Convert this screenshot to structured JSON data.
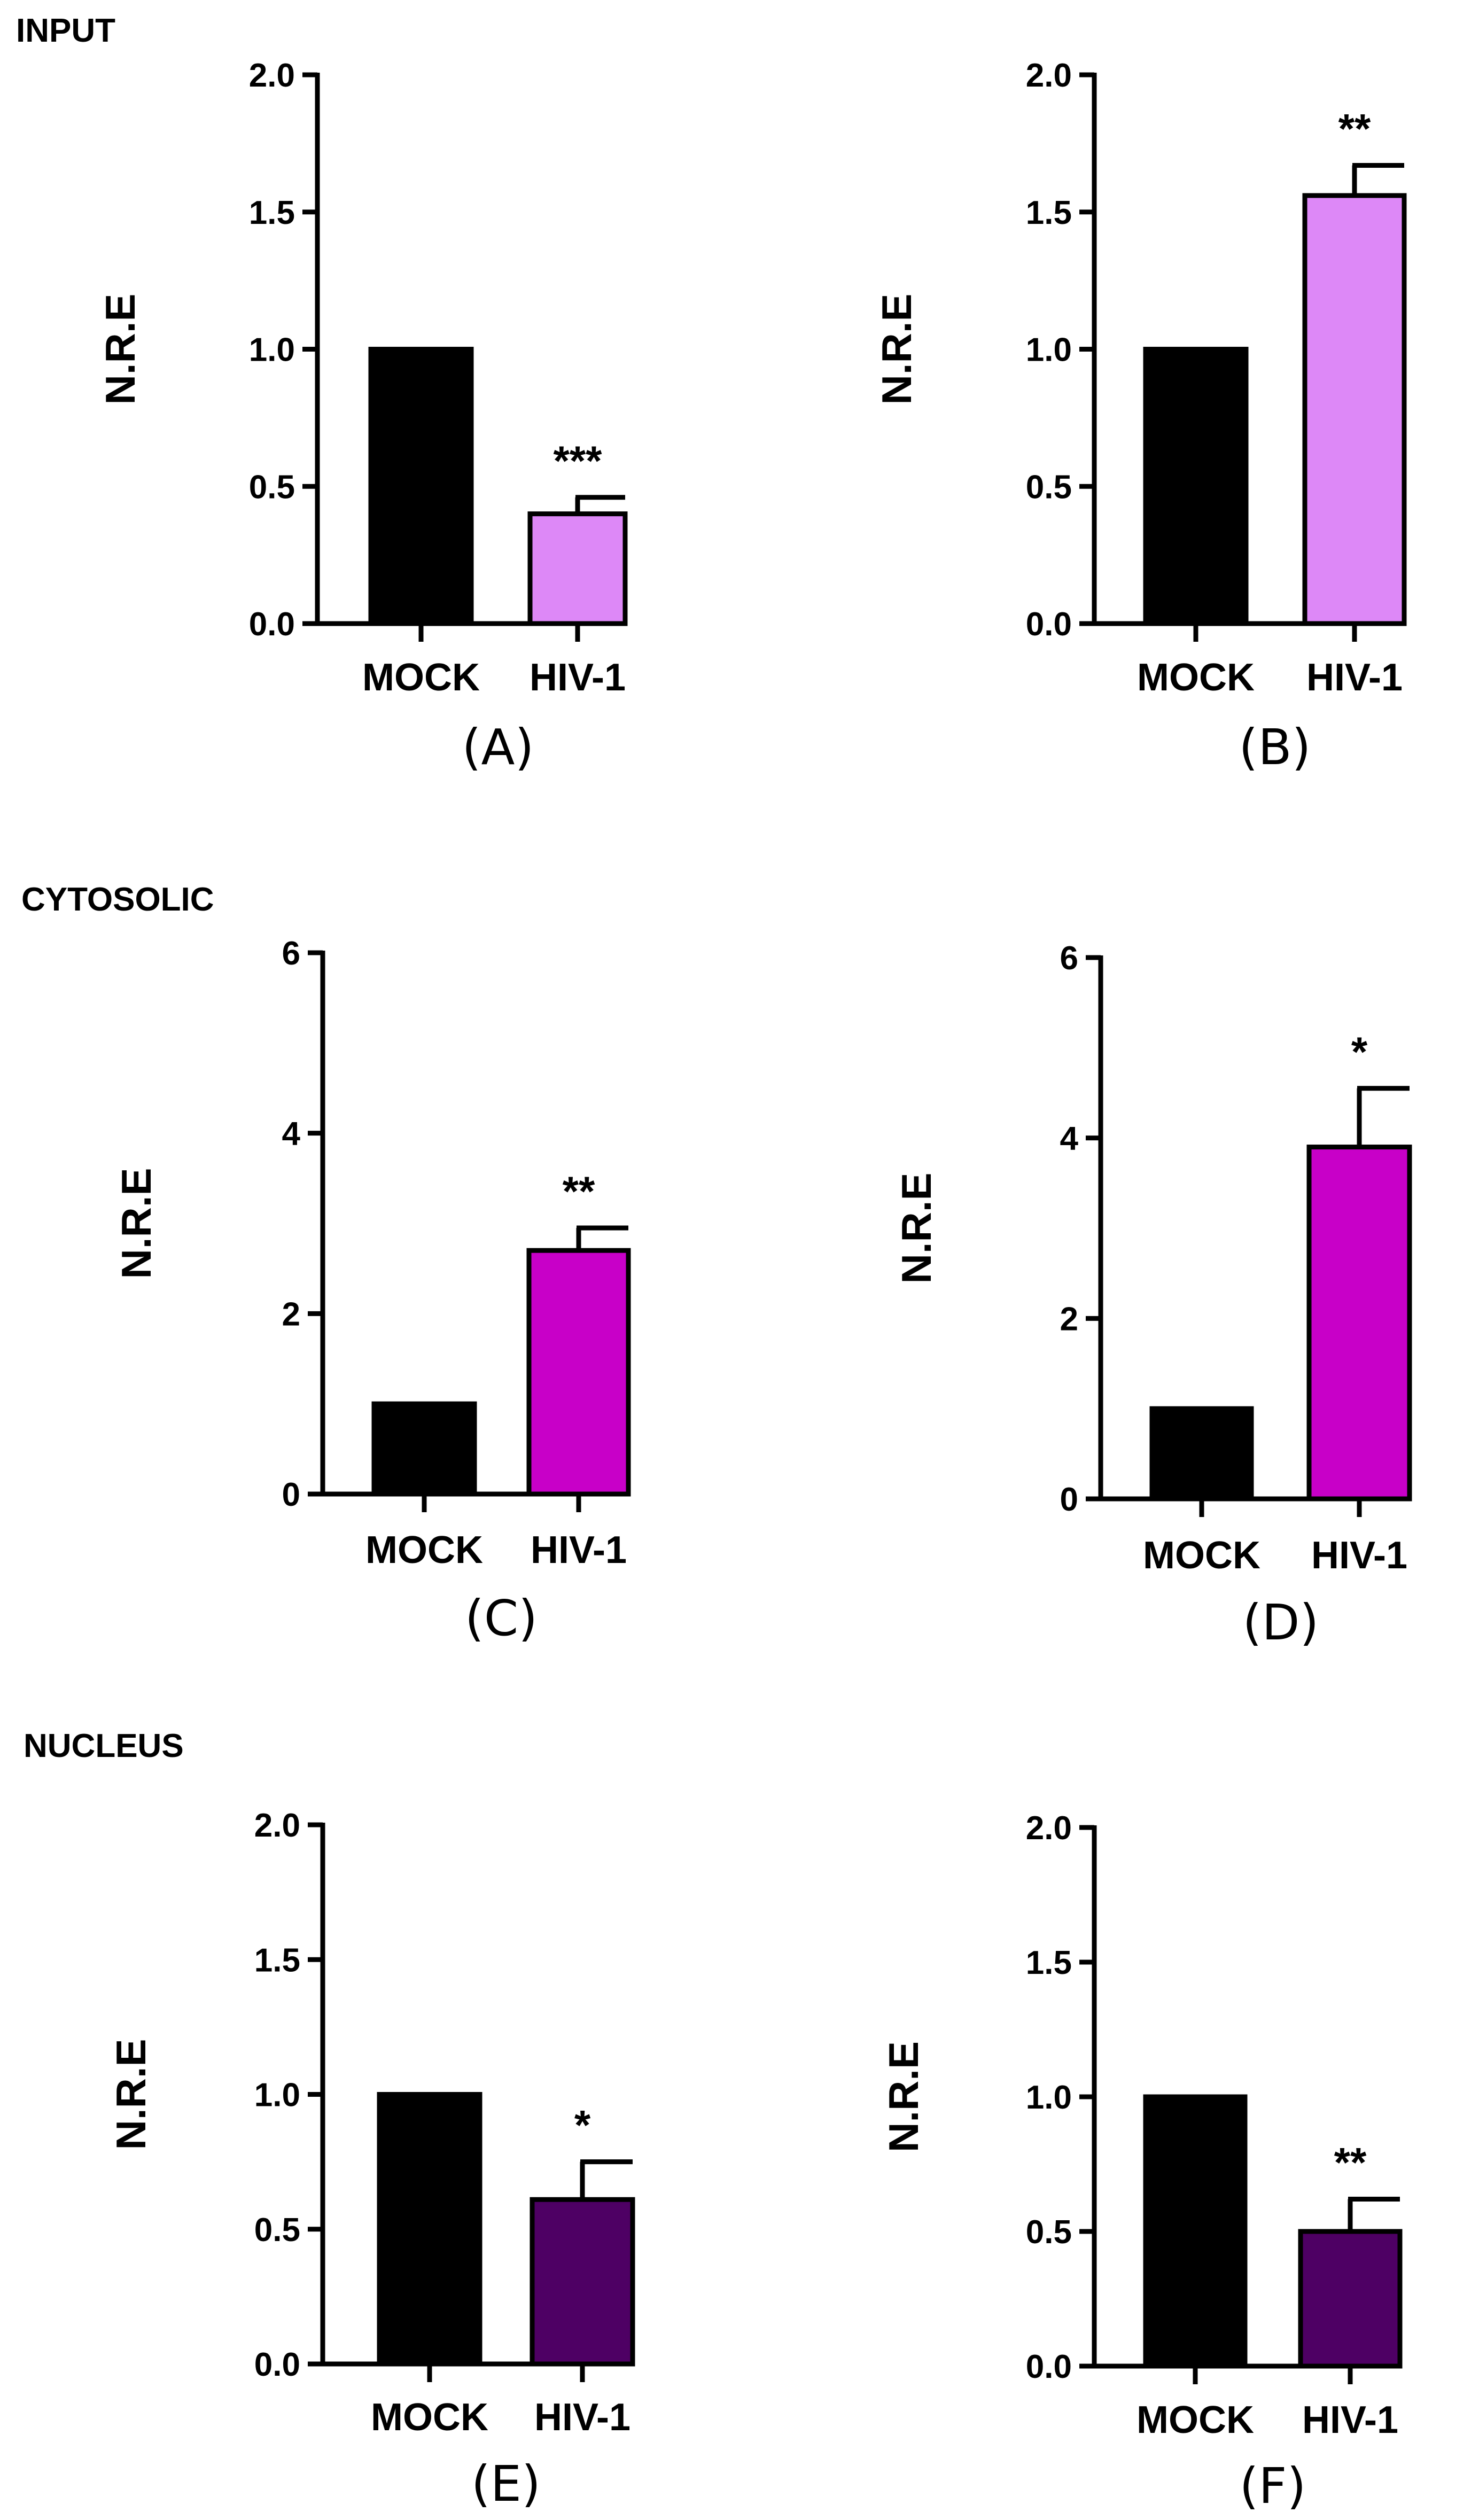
{
  "sections": {
    "input": "INPUT",
    "cytosolic": "CYTOSOLIC",
    "nucleus": "NUCLEUS"
  },
  "chart_data": [
    {
      "type": "bar",
      "panel": "(A)",
      "section": "INPUT",
      "categories": [
        "MOCK",
        "HIV-1"
      ],
      "values": [
        1.0,
        0.4
      ],
      "errors": [
        0,
        0.06
      ],
      "significance": [
        "",
        "***"
      ],
      "colors": [
        "#000000",
        "#dd88f7"
      ],
      "ylabel": "N.R.E",
      "ylim": [
        0,
        2.0
      ],
      "yticks": [
        0,
        0.5,
        1.0,
        1.5,
        2.0
      ],
      "ytick_labels": [
        "0.0",
        "0.5",
        "1.0",
        "1.5",
        "2.0"
      ]
    },
    {
      "type": "bar",
      "panel": "(B)",
      "section": "INPUT",
      "categories": [
        "MOCK",
        "HIV-1"
      ],
      "values": [
        1.0,
        1.56
      ],
      "errors": [
        0,
        0.11
      ],
      "significance": [
        "",
        "**"
      ],
      "colors": [
        "#000000",
        "#dd88f7"
      ],
      "ylabel": "N.R.E",
      "ylim": [
        0,
        2.0
      ],
      "yticks": [
        0,
        0.5,
        1.0,
        1.5,
        2.0
      ],
      "ytick_labels": [
        "0.0",
        "0.5",
        "1.0",
        "1.5",
        "2.0"
      ]
    },
    {
      "type": "bar",
      "panel": "(C)",
      "section": "CYTOSOLIC",
      "categories": [
        "MOCK",
        "HIV-1"
      ],
      "values": [
        1.0,
        2.7
      ],
      "errors": [
        0,
        0.25
      ],
      "significance": [
        "",
        "**"
      ],
      "colors": [
        "#000000",
        "#c800c8"
      ],
      "ylabel": "N.R.E",
      "ylim": [
        0,
        6
      ],
      "yticks": [
        0,
        2,
        4,
        6
      ],
      "ytick_labels": [
        "0",
        "2",
        "4",
        "6"
      ]
    },
    {
      "type": "bar",
      "panel": "(D)",
      "section": "CYTOSOLIC",
      "categories": [
        "MOCK",
        "HIV-1"
      ],
      "values": [
        1.0,
        3.9
      ],
      "errors": [
        0,
        0.65
      ],
      "significance": [
        "",
        "*"
      ],
      "colors": [
        "#000000",
        "#c800c8"
      ],
      "ylabel": "N.R.E",
      "ylim": [
        0,
        6
      ],
      "yticks": [
        0,
        2,
        4,
        6
      ],
      "ytick_labels": [
        "0",
        "2",
        "4",
        "6"
      ]
    },
    {
      "type": "bar",
      "panel": "(E)",
      "section": "NUCLEUS",
      "categories": [
        "MOCK",
        "HIV-1"
      ],
      "values": [
        1.0,
        0.61
      ],
      "errors": [
        0,
        0.14
      ],
      "significance": [
        "",
        "*"
      ],
      "colors": [
        "#000000",
        "#4e0064"
      ],
      "ylabel": "N.R.E",
      "ylim": [
        0,
        2.0
      ],
      "yticks": [
        0,
        0.5,
        1.0,
        1.5,
        2.0
      ],
      "ytick_labels": [
        "0.0",
        "0.5",
        "1.0",
        "1.5",
        "2.0"
      ]
    },
    {
      "type": "bar",
      "panel": "(F)",
      "section": "NUCLEUS",
      "categories": [
        "MOCK",
        "HIV-1"
      ],
      "values": [
        1.0,
        0.5
      ],
      "errors": [
        0,
        0.12
      ],
      "significance": [
        "",
        "**"
      ],
      "colors": [
        "#000000",
        "#4e0064"
      ],
      "ylabel": "N.R.E",
      "ylim": [
        0,
        2.0
      ],
      "yticks": [
        0,
        0.5,
        1.0,
        1.5,
        2.0
      ],
      "ytick_labels": [
        "0.0",
        "0.5",
        "1.0",
        "1.5",
        "2.0"
      ]
    }
  ]
}
